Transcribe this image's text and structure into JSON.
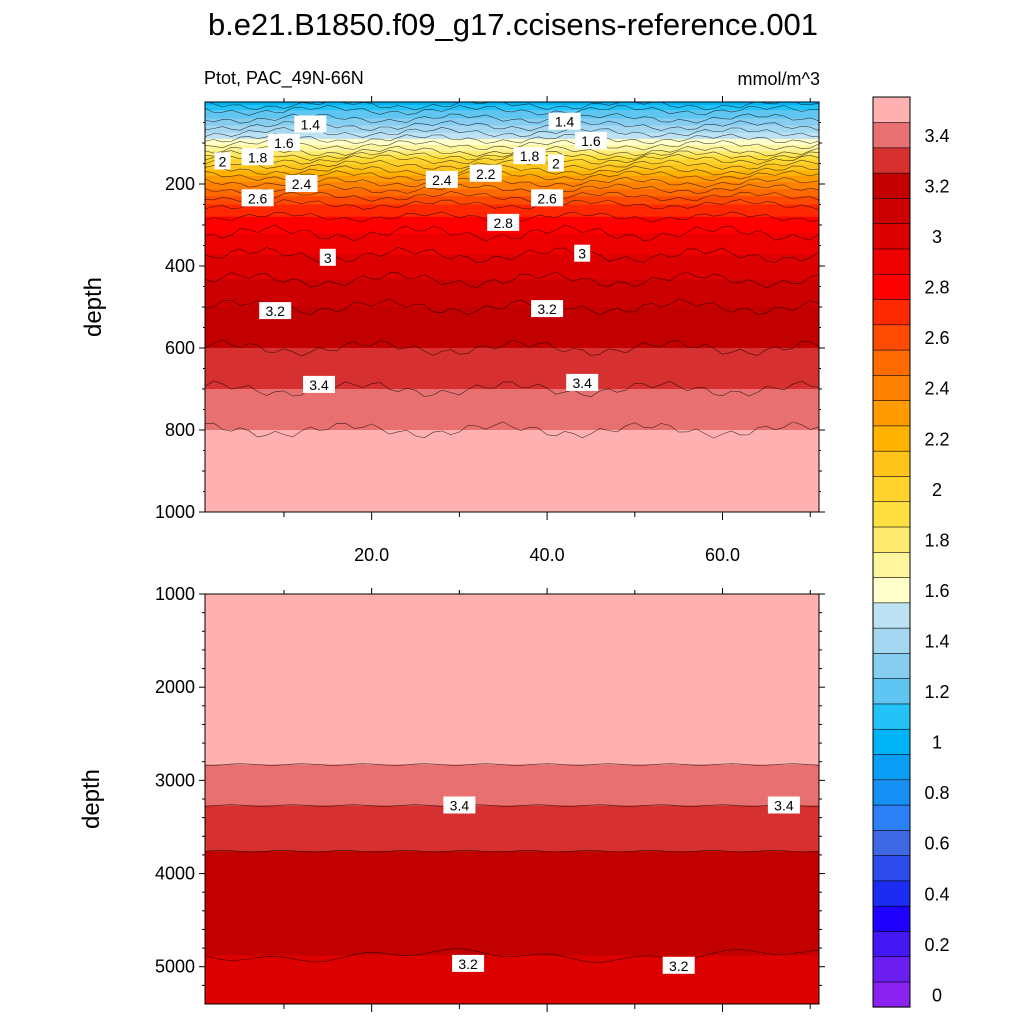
{
  "title": "b.e21.B1850.f09_g17.ccisens-reference.001",
  "subtitle_left": "Ptot, PAC_49N-66N",
  "subtitle_right": "mmol/m^3",
  "chart_data": [
    {
      "type": "contour",
      "panel": "upper",
      "xlabel": "",
      "ylabel": "depth",
      "xlim": [
        1,
        71
      ],
      "ylim": [
        1000,
        0
      ],
      "xticks": [
        20,
        40,
        60
      ],
      "xtick_labels": [
        "20.0",
        "40.0",
        "60.0"
      ],
      "yticks": [
        200,
        400,
        600,
        800,
        1000
      ],
      "ytick_labels": [
        "200",
        "400",
        "600",
        "800",
        "1000"
      ],
      "profile": [
        {
          "depth": 0,
          "value": 1.05
        },
        {
          "depth": 20,
          "value": 1.2
        },
        {
          "depth": 50,
          "value": 1.35
        },
        {
          "depth": 90,
          "value": 1.6
        },
        {
          "depth": 120,
          "value": 1.8
        },
        {
          "depth": 140,
          "value": 2.0
        },
        {
          "depth": 180,
          "value": 2.3
        },
        {
          "depth": 220,
          "value": 2.55
        },
        {
          "depth": 260,
          "value": 2.75
        },
        {
          "depth": 320,
          "value": 2.9
        },
        {
          "depth": 400,
          "value": 3.05
        },
        {
          "depth": 500,
          "value": 3.2
        },
        {
          "depth": 600,
          "value": 3.3
        },
        {
          "depth": 700,
          "value": 3.4
        },
        {
          "depth": 800,
          "value": 3.5
        },
        {
          "depth": 1000,
          "value": 3.58
        }
      ],
      "contour_labels": [
        {
          "text": "1.4",
          "x": 13,
          "depth": 55
        },
        {
          "text": "1.4",
          "x": 42,
          "depth": 48
        },
        {
          "text": "1.6",
          "x": 10,
          "depth": 100
        },
        {
          "text": "1.6",
          "x": 45,
          "depth": 95
        },
        {
          "text": "2",
          "x": 3,
          "depth": 145
        },
        {
          "text": "1.8",
          "x": 7,
          "depth": 135
        },
        {
          "text": "1.8",
          "x": 38,
          "depth": 132
        },
        {
          "text": "2",
          "x": 41,
          "depth": 150
        },
        {
          "text": "2.2",
          "x": 33,
          "depth": 175
        },
        {
          "text": "2.4",
          "x": 12,
          "depth": 200
        },
        {
          "text": "2.4",
          "x": 28,
          "depth": 190
        },
        {
          "text": "2.6",
          "x": 7,
          "depth": 235
        },
        {
          "text": "2.6",
          "x": 40,
          "depth": 235
        },
        {
          "text": "2.8",
          "x": 35,
          "depth": 295
        },
        {
          "text": "3",
          "x": 15,
          "depth": 380
        },
        {
          "text": "3",
          "x": 44,
          "depth": 370
        },
        {
          "text": "3.2",
          "x": 9,
          "depth": 510
        },
        {
          "text": "3.2",
          "x": 40,
          "depth": 505
        },
        {
          "text": "3.4",
          "x": 14,
          "depth": 690
        },
        {
          "text": "3.4",
          "x": 44,
          "depth": 685
        }
      ]
    },
    {
      "type": "contour",
      "panel": "lower",
      "xlabel": "",
      "ylabel": "depth",
      "xlim": [
        1,
        71
      ],
      "ylim": [
        5400,
        1000
      ],
      "yticks": [
        1000,
        2000,
        3000,
        4000,
        5000
      ],
      "ytick_labels": [
        "1000",
        "2000",
        "3000",
        "4000",
        "5000"
      ],
      "bands": [
        {
          "from": 1000,
          "to": 2830,
          "level": "3.5+"
        },
        {
          "from": 2830,
          "to": 3270,
          "level": "3.4-3.5"
        },
        {
          "from": 3270,
          "to": 3760,
          "level": "3.3-3.4"
        },
        {
          "from": 3760,
          "to": 4880,
          "level": "3.2-3.3"
        },
        {
          "from": 4880,
          "to": 5400,
          "level": "3.1-3.2"
        }
      ],
      "contour_labels": [
        {
          "text": "3.4",
          "x": 30,
          "depth": 3270
        },
        {
          "text": "3.4",
          "x": 67,
          "depth": 3270
        },
        {
          "text": "3.2",
          "x": 31,
          "depth": 4970
        },
        {
          "text": "3.2",
          "x": 55,
          "depth": 4990
        }
      ]
    }
  ],
  "colorbar": {
    "levels": [
      0,
      0.1,
      0.2,
      0.3,
      0.4,
      0.5,
      0.6,
      0.7,
      0.8,
      0.9,
      1.0,
      1.1,
      1.2,
      1.3,
      1.4,
      1.5,
      1.6,
      1.7,
      1.8,
      1.9,
      2.0,
      2.1,
      2.2,
      2.3,
      2.4,
      2.5,
      2.6,
      2.7,
      2.8,
      2.9,
      3.0,
      3.1,
      3.2,
      3.3,
      3.4,
      3.5
    ],
    "labels": [
      "0",
      "0.2",
      "0.4",
      "0.6",
      "0.8",
      "1",
      "1.2",
      "1.4",
      "1.6",
      "1.8",
      "2",
      "2.2",
      "2.4",
      "2.6",
      "2.8",
      "3",
      "3.2",
      "3.4"
    ],
    "colors": [
      "#8b21f0",
      "#6a1ff0",
      "#4418f4",
      "#1f00ff",
      "#1b2cf0",
      "#2e4ced",
      "#3e67e4",
      "#2c7ff5",
      "#1690f4",
      "#0a9ef6",
      "#00b3f5",
      "#23c3f7",
      "#5ec6f0",
      "#86cdf0",
      "#a5d8f0",
      "#bce2f3",
      "#ffffcc",
      "#fff59c",
      "#ffea70",
      "#ffe040",
      "#ffd32c",
      "#ffc41a",
      "#ffb300",
      "#ff9a00",
      "#ff8200",
      "#ff6b00",
      "#ff4b00",
      "#ff2900",
      "#ff0000",
      "#ed0000",
      "#dd0000",
      "#cc0000",
      "#c20000",
      "#d63030",
      "#e87070",
      "#ffb0b0"
    ]
  }
}
